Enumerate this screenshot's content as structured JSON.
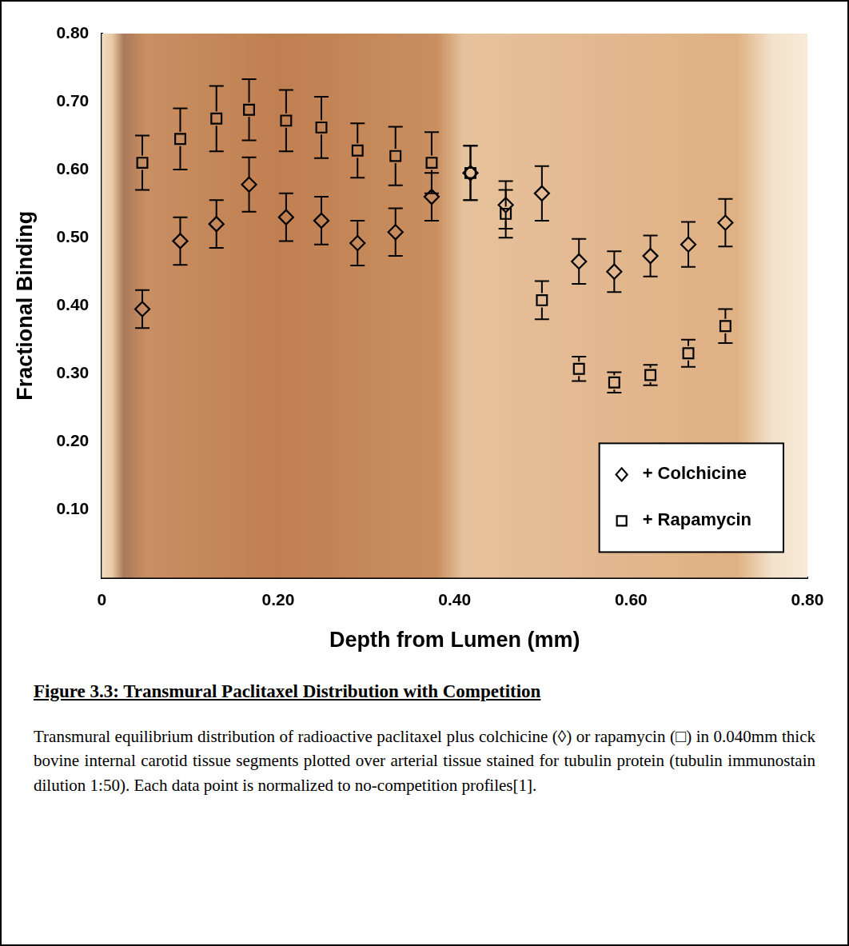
{
  "chart_data": {
    "type": "scatter",
    "x_label": "Depth from Lumen (mm)",
    "y_label": "Fractional Binding",
    "xlim": [
      0,
      0.8
    ],
    "xticks": [
      0,
      {
        "value": 0.2,
        "label": "0.20"
      },
      {
        "value": 0.4,
        "label": "0.40"
      },
      {
        "value": 0.6,
        "label": "0.60"
      },
      {
        "value": 0.8,
        "label": "0.80"
      }
    ],
    "ylim": [
      0,
      0.8
    ],
    "yticks": [
      {
        "value": 0.1,
        "label": "0.10"
      },
      {
        "value": 0.2,
        "label": "0.20"
      },
      {
        "value": 0.3,
        "label": "0.30"
      },
      {
        "value": 0.4,
        "label": "0.40"
      },
      {
        "value": 0.5,
        "label": "0.50"
      },
      {
        "value": 0.6,
        "label": "0.60"
      },
      {
        "value": 0.7,
        "label": "0.70"
      },
      {
        "value": 0.8,
        "label": "0.80"
      }
    ],
    "grid": false,
    "legend": "lower right",
    "x": [
      0.046,
      0.089,
      0.13,
      0.167,
      0.209,
      0.249,
      0.29,
      0.333,
      0.374,
      0.418,
      0.458,
      0.499,
      0.541,
      0.581,
      0.622,
      0.665,
      0.707
    ],
    "series": [
      {
        "name": "+ Colchicine",
        "color": "#000000",
        "marker": "diamond",
        "values": [
          0.395,
          0.495,
          0.52,
          0.578,
          0.53,
          0.525,
          0.492,
          0.508,
          0.56,
          0.595,
          0.548,
          0.565,
          0.465,
          0.45,
          0.473,
          0.49,
          0.522
        ],
        "errors": [
          0.028,
          0.035,
          0.035,
          0.04,
          0.035,
          0.035,
          0.033,
          0.035,
          0.035,
          0.04,
          0.035,
          0.04,
          0.033,
          0.03,
          0.03,
          0.033,
          0.035
        ]
      },
      {
        "name": "+ Rapamycin",
        "color": "#000000",
        "marker": "square",
        "values": [
          0.61,
          0.645,
          0.675,
          0.688,
          0.672,
          0.662,
          0.628,
          0.62,
          0.61,
          0.595,
          0.535,
          0.408,
          0.307,
          0.287,
          0.298,
          0.33,
          0.37
        ],
        "errors": [
          0.04,
          0.045,
          0.048,
          0.045,
          0.045,
          0.045,
          0.04,
          0.043,
          0.045,
          0.04,
          0.035,
          0.028,
          0.018,
          0.015,
          0.015,
          0.02,
          0.025
        ]
      }
    ]
  },
  "figure": {
    "title": "Figure 3.3: Transmural Paclitaxel Distribution with Competition",
    "caption": "Transmural equilibrium distribution of radioactive paclitaxel plus colchicine (◊) or rapamycin (□) in 0.040mm thick bovine internal carotid tissue segments plotted over arterial tissue stained for tubulin protein (tubulin immunostain dilution 1:50). Each data point is normalized to no-competition profiles[1]."
  }
}
